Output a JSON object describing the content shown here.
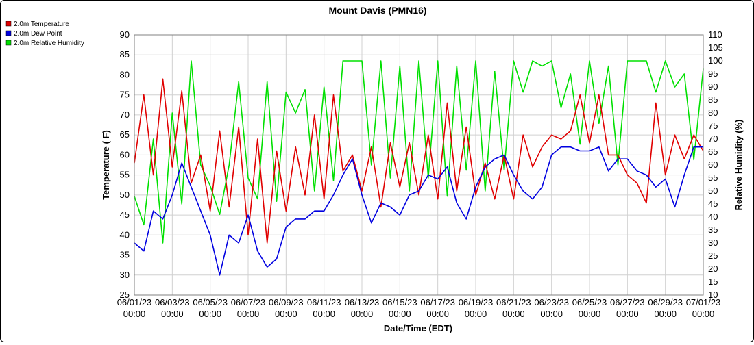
{
  "chart_data": {
    "type": "line",
    "title": "Mount Davis (PMN16)",
    "xlabel": "Date/Time (EDT)",
    "ylabel": "Temperature ( F)",
    "y2label": "Relative Humidity (%)",
    "xlim": [
      "06/01/23 00:00",
      "07/01/23 00:00"
    ],
    "ylim": [
      25,
      90
    ],
    "y2lim": [
      10,
      110
    ],
    "grid": true,
    "legend_position": "top-left",
    "x_ticks": [
      {
        "date": "06/01/23",
        "time": "00:00"
      },
      {
        "date": "06/03/23",
        "time": "00:00"
      },
      {
        "date": "06/05/23",
        "time": "00:00"
      },
      {
        "date": "06/07/23",
        "time": "00:00"
      },
      {
        "date": "06/09/23",
        "time": "00:00"
      },
      {
        "date": "06/11/23",
        "time": "00:00"
      },
      {
        "date": "06/13/23",
        "time": "00:00"
      },
      {
        "date": "06/15/23",
        "time": "00:00"
      },
      {
        "date": "06/17/23",
        "time": "00:00"
      },
      {
        "date": "06/19/23",
        "time": "00:00"
      },
      {
        "date": "06/21/23",
        "time": "00:00"
      },
      {
        "date": "06/23/23",
        "time": "00:00"
      },
      {
        "date": "06/25/23",
        "time": "00:00"
      },
      {
        "date": "06/27/23",
        "time": "00:00"
      },
      {
        "date": "06/29/23",
        "time": "00:00"
      },
      {
        "date": "07/01/23",
        "time": "00:00"
      }
    ],
    "y_ticks": [
      25,
      30,
      35,
      40,
      45,
      50,
      55,
      60,
      65,
      70,
      75,
      80,
      85,
      90
    ],
    "y2_ticks": [
      10,
      15,
      20,
      25,
      30,
      35,
      40,
      45,
      50,
      55,
      60,
      65,
      70,
      75,
      80,
      85,
      90,
      95,
      100,
      105,
      110
    ],
    "x": [
      "06/01/23 00:00",
      "06/01/23 12:00",
      "06/02/23 00:00",
      "06/02/23 12:00",
      "06/03/23 00:00",
      "06/03/23 12:00",
      "06/04/23 00:00",
      "06/04/23 12:00",
      "06/05/23 00:00",
      "06/05/23 12:00",
      "06/06/23 00:00",
      "06/06/23 12:00",
      "06/07/23 00:00",
      "06/07/23 12:00",
      "06/08/23 00:00",
      "06/08/23 12:00",
      "06/09/23 00:00",
      "06/09/23 12:00",
      "06/10/23 00:00",
      "06/10/23 12:00",
      "06/11/23 00:00",
      "06/11/23 12:00",
      "06/12/23 00:00",
      "06/12/23 12:00",
      "06/13/23 00:00",
      "06/13/23 12:00",
      "06/14/23 00:00",
      "06/14/23 12:00",
      "06/15/23 00:00",
      "06/15/23 12:00",
      "06/16/23 00:00",
      "06/16/23 12:00",
      "06/17/23 00:00",
      "06/17/23 12:00",
      "06/18/23 00:00",
      "06/18/23 12:00",
      "06/19/23 00:00",
      "06/19/23 12:00",
      "06/20/23 00:00",
      "06/20/23 12:00",
      "06/21/23 00:00",
      "06/21/23 12:00",
      "06/22/23 00:00",
      "06/22/23 12:00",
      "06/23/23 00:00",
      "06/23/23 12:00",
      "06/24/23 00:00",
      "06/24/23 12:00",
      "06/25/23 00:00",
      "06/25/23 12:00",
      "06/26/23 00:00",
      "06/26/23 12:00",
      "06/27/23 00:00",
      "06/27/23 12:00",
      "06/28/23 00:00",
      "06/28/23 12:00",
      "06/29/23 00:00",
      "06/29/23 12:00",
      "06/30/23 00:00",
      "06/30/23 12:00",
      "07/01/23 00:00"
    ],
    "series": [
      {
        "name": "2.0m Temperature",
        "color": "#e00000",
        "axis": "left",
        "values": [
          58,
          75,
          55,
          79,
          57,
          76,
          53,
          60,
          46,
          66,
          47,
          67,
          40,
          64,
          38,
          61,
          46,
          62,
          50,
          70,
          49,
          75,
          56,
          60,
          51,
          62,
          47,
          63,
          52,
          63,
          50,
          65,
          49,
          73,
          51,
          67,
          50,
          58,
          49,
          60,
          49,
          65,
          57,
          62,
          65,
          64,
          66,
          75,
          63,
          75,
          60,
          60,
          55,
          53,
          48,
          73,
          55,
          65,
          59,
          65,
          61
        ]
      },
      {
        "name": "2.0m Dew Point",
        "color": "#0000e0",
        "axis": "left",
        "values": [
          38,
          36,
          46,
          44,
          50,
          58,
          52,
          46,
          40,
          30,
          40,
          38,
          45,
          36,
          32,
          34,
          42,
          44,
          44,
          46,
          46,
          50,
          55,
          59,
          50,
          43,
          48,
          47,
          45,
          50,
          51,
          55,
          54,
          57,
          48,
          44,
          52,
          57,
          59,
          60,
          55,
          51,
          49,
          52,
          60,
          62,
          62,
          61,
          61,
          62,
          56,
          59,
          59,
          56,
          55,
          52,
          54,
          47,
          55,
          62,
          62
        ]
      },
      {
        "name": "2.0m Relative Humidity",
        "color": "#00e000",
        "axis": "right",
        "values": [
          48,
          37,
          70,
          30,
          80,
          45,
          100,
          60,
          52,
          41,
          60,
          92,
          55,
          47,
          92,
          46,
          88,
          80,
          89,
          50,
          90,
          54,
          100,
          100,
          100,
          60,
          100,
          55,
          98,
          50,
          100,
          55,
          100,
          48,
          98,
          58,
          100,
          50,
          96,
          58,
          100,
          88,
          100,
          98,
          100,
          82,
          95,
          68,
          100,
          76,
          98,
          60,
          100,
          100,
          100,
          88,
          100,
          90,
          95,
          62,
          97
        ]
      }
    ]
  }
}
